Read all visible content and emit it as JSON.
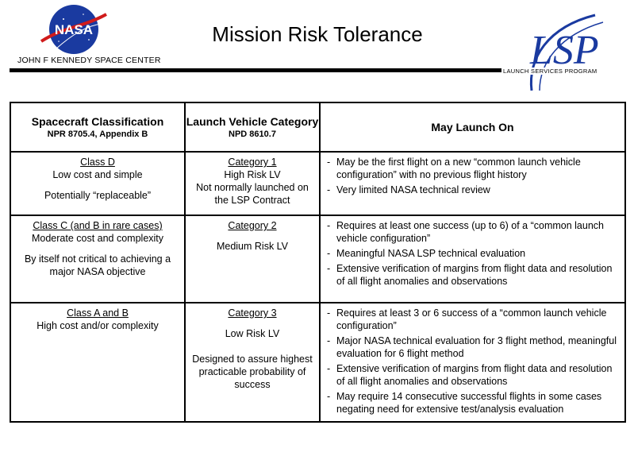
{
  "header": {
    "title": "Mission Risk Tolerance",
    "nasa_logo_text": "NASA",
    "ksc_label": "JOHN F KENNEDY SPACE CENTER",
    "lsp_logo_text": "LSP",
    "lsp_label": "LAUNCH SERVICES PROGRAM",
    "colors": {
      "nasa_blue": "#1a3aa0",
      "nasa_red": "#d01b1b",
      "lsp_blue": "#1a3aa0"
    }
  },
  "table": {
    "headers": {
      "col1": {
        "main": "Spacecraft Classification",
        "sub": "NPR 8705.4, Appendix B"
      },
      "col2": {
        "main": "Launch Vehicle Category",
        "sub": "NPD 8610.7"
      },
      "col3": {
        "main": "May Launch On"
      }
    },
    "rows": [
      {
        "class_title": "Class D",
        "class_lines": [
          "Low cost and simple",
          "Potentially “replaceable”"
        ],
        "category_title": "Category 1",
        "category_lines": [
          "High Risk LV",
          "Not normally launched on the LSP Contract"
        ],
        "launch_items": [
          "May be the first flight on a new “common launch vehicle configuration” with no previous flight history",
          "Very limited NASA technical review"
        ]
      },
      {
        "class_title": "Class C (and B in rare cases)",
        "class_lines": [
          "Moderate cost and complexity",
          "By itself not critical to achieving a major NASA objective"
        ],
        "category_title": "Category 2",
        "category_lines": [
          "Medium Risk LV"
        ],
        "launch_items": [
          "Requires at least one success (up to 6) of a “common launch vehicle configuration”",
          "Meaningful NASA LSP technical evaluation",
          "Extensive verification of margins from flight data and resolution of all flight anomalies and observations"
        ]
      },
      {
        "class_title": "Class A and B",
        "class_lines": [
          "High cost and/or complexity"
        ],
        "category_title": "Category 3",
        "category_lines": [
          "Low Risk LV",
          "Designed to assure highest practicable probability of success"
        ],
        "launch_items": [
          "Requires at least 3 or 6 success of a “common launch vehicle configuration”",
          "Major NASA technical evaluation for 3 flight method, meaningful evaluation for 6 flight method",
          "Extensive verification of margins from flight data and resolution of all flight anomalies and observations",
          "May require 14 consecutive successful flights in some cases negating need for extensive test/analysis evaluation"
        ]
      }
    ]
  }
}
